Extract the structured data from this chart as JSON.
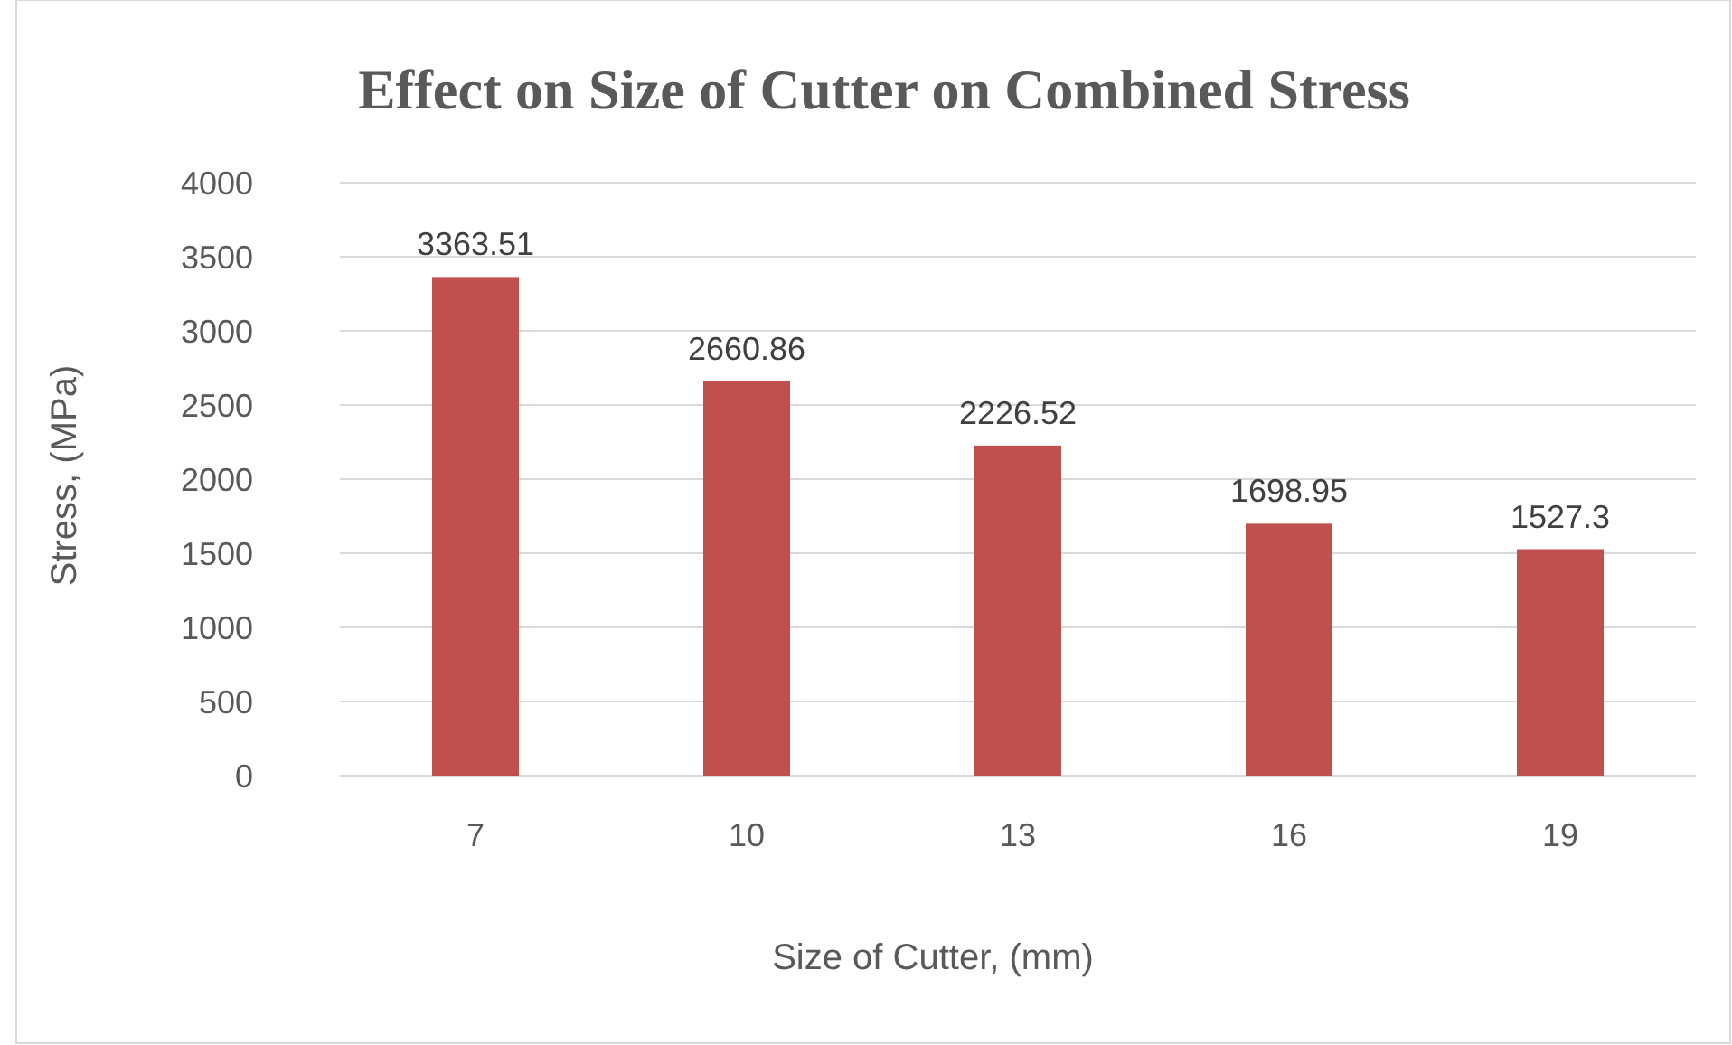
{
  "chart_data": {
    "type": "bar",
    "title": "Effect on Size of Cutter on Combined Stress",
    "xlabel": "Size of Cutter, (mm)",
    "ylabel": "Stress, (MPa)",
    "categories": [
      "7",
      "10",
      "13",
      "16",
      "19"
    ],
    "values": [
      3363.51,
      2660.86,
      2226.52,
      1698.95,
      1527.3
    ],
    "color": "#c0504d",
    "ylim": [
      0,
      4000
    ],
    "yticks": [
      0,
      500,
      1000,
      1500,
      2000,
      2500,
      3000,
      3500,
      4000
    ],
    "grid": "y",
    "data_labels": true
  }
}
